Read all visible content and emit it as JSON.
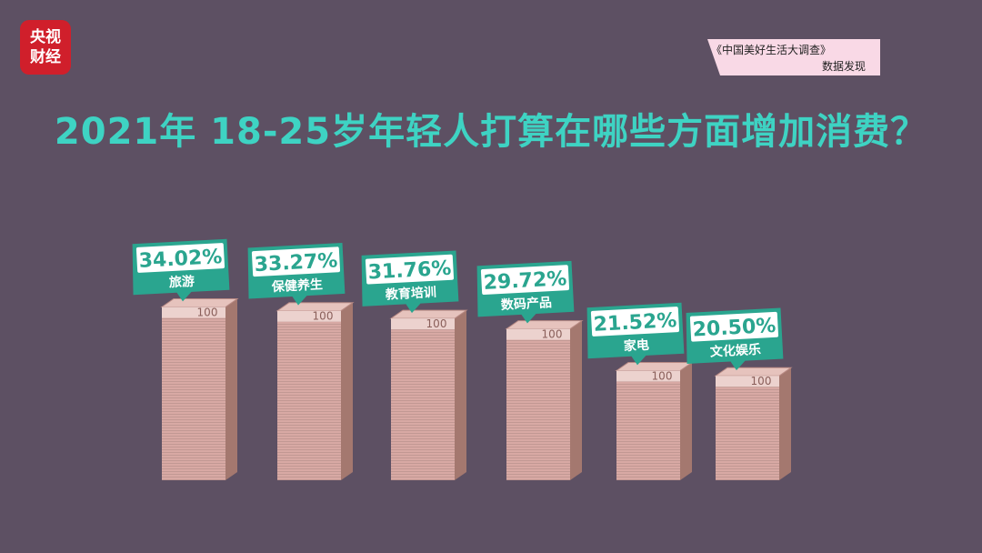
{
  "logo": {
    "line1": "央视",
    "line2": "财经"
  },
  "source": {
    "title": "《中国美好生活大调查》",
    "subtitle": "数据发现"
  },
  "chart_data": {
    "type": "bar",
    "title": "2021年  18-25岁年轻人打算在哪些方面增加消费？",
    "categories": [
      "旅游",
      "保健养生",
      "教育培训",
      "数码产品",
      "家电",
      "文化娱乐"
    ],
    "values": [
      34.02,
      33.27,
      31.76,
      29.72,
      21.52,
      20.5
    ],
    "value_labels": [
      "34.02%",
      "33.27%",
      "31.76%",
      "29.72%",
      "21.52%",
      "20.50%"
    ],
    "unit": "%",
    "bar_style": "stacked banknotes",
    "banknote_denomination": "100"
  },
  "colors": {
    "background": "#5d5063",
    "title": "#3ed3c3",
    "label_bg": "#2aa58f",
    "label_text": "#ffffff",
    "bar_front": "#d8a9a4",
    "bar_side": "#a4786f",
    "logo_bg": "#d01f2b",
    "source_bg": "#f9d9e6"
  }
}
